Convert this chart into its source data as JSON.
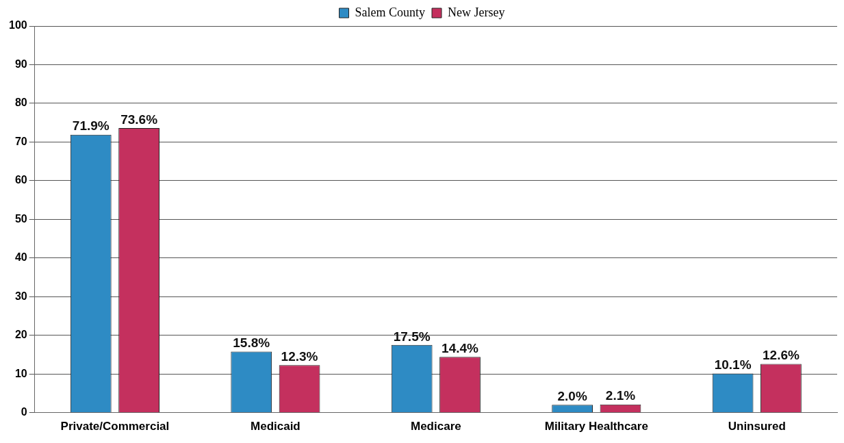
{
  "chart_data": {
    "type": "bar",
    "categories": [
      "Private/Commercial",
      "Medicaid",
      "Medicare",
      "Military Healthcare",
      "Uninsured"
    ],
    "series": [
      {
        "name": "Salem County",
        "color": "#2e8bc4",
        "values": [
          71.9,
          15.8,
          17.5,
          2.0,
          10.1
        ],
        "value_labels": [
          "71.9%",
          "15.8%",
          "17.5%",
          "2.0%",
          "10.1%"
        ]
      },
      {
        "name": "New Jersey",
        "color": "#c4305e",
        "values": [
          73.6,
          12.3,
          14.4,
          2.1,
          12.6
        ],
        "value_labels": [
          "73.6%",
          "12.3%",
          "14.4%",
          "2.1%",
          "12.6%"
        ]
      }
    ],
    "ylim": [
      0,
      100
    ],
    "yticks": [
      0,
      10,
      20,
      30,
      40,
      50,
      60,
      70,
      80,
      90,
      100
    ],
    "grid": "y",
    "legend": "top"
  }
}
